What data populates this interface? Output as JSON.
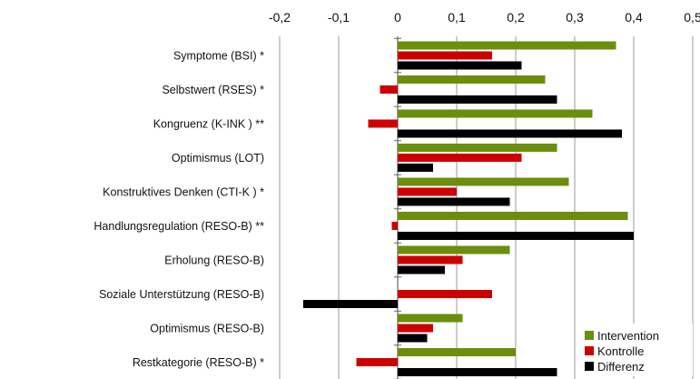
{
  "chart_data": {
    "type": "bar",
    "orientation": "horizontal",
    "title": "",
    "xlabel": "",
    "ylabel": "",
    "xlim": [
      -0.2,
      0.5
    ],
    "x_ticks": [
      "-0,2",
      "-0,1",
      "0",
      "0,1",
      "0,2",
      "0,3",
      "0,4",
      "0,5"
    ],
    "grid": true,
    "legend_position": "bottom-right",
    "categories": [
      "Symptome (BSI) *",
      "Selbstwert (RSES) *",
      "Kongruenz (K-INK ) **",
      "Optimismus (LOT)",
      "Konstruktives Denken (CTI-K ) *",
      "Handlungsregulation (RESO-B) **",
      "Erholung (RESO-B)",
      "Soziale Unterstützung (RESO-B)",
      "Optimismus (RESO-B)",
      "Restkategorie (RESO-B) *"
    ],
    "series": [
      {
        "name": "Intervention",
        "color": "#6b8e0e",
        "values": [
          0.37,
          0.25,
          0.33,
          0.27,
          0.29,
          0.39,
          0.19,
          0.0,
          0.11,
          0.2
        ]
      },
      {
        "name": "Kontrolle",
        "color": "#cc0000",
        "values": [
          0.16,
          -0.03,
          -0.05,
          0.21,
          0.1,
          -0.01,
          0.11,
          0.16,
          0.06,
          -0.07
        ]
      },
      {
        "name": "Differenz",
        "color": "#000000",
        "values": [
          0.21,
          0.27,
          0.38,
          0.06,
          0.19,
          0.4,
          0.08,
          -0.16,
          0.05,
          0.27
        ]
      }
    ]
  }
}
